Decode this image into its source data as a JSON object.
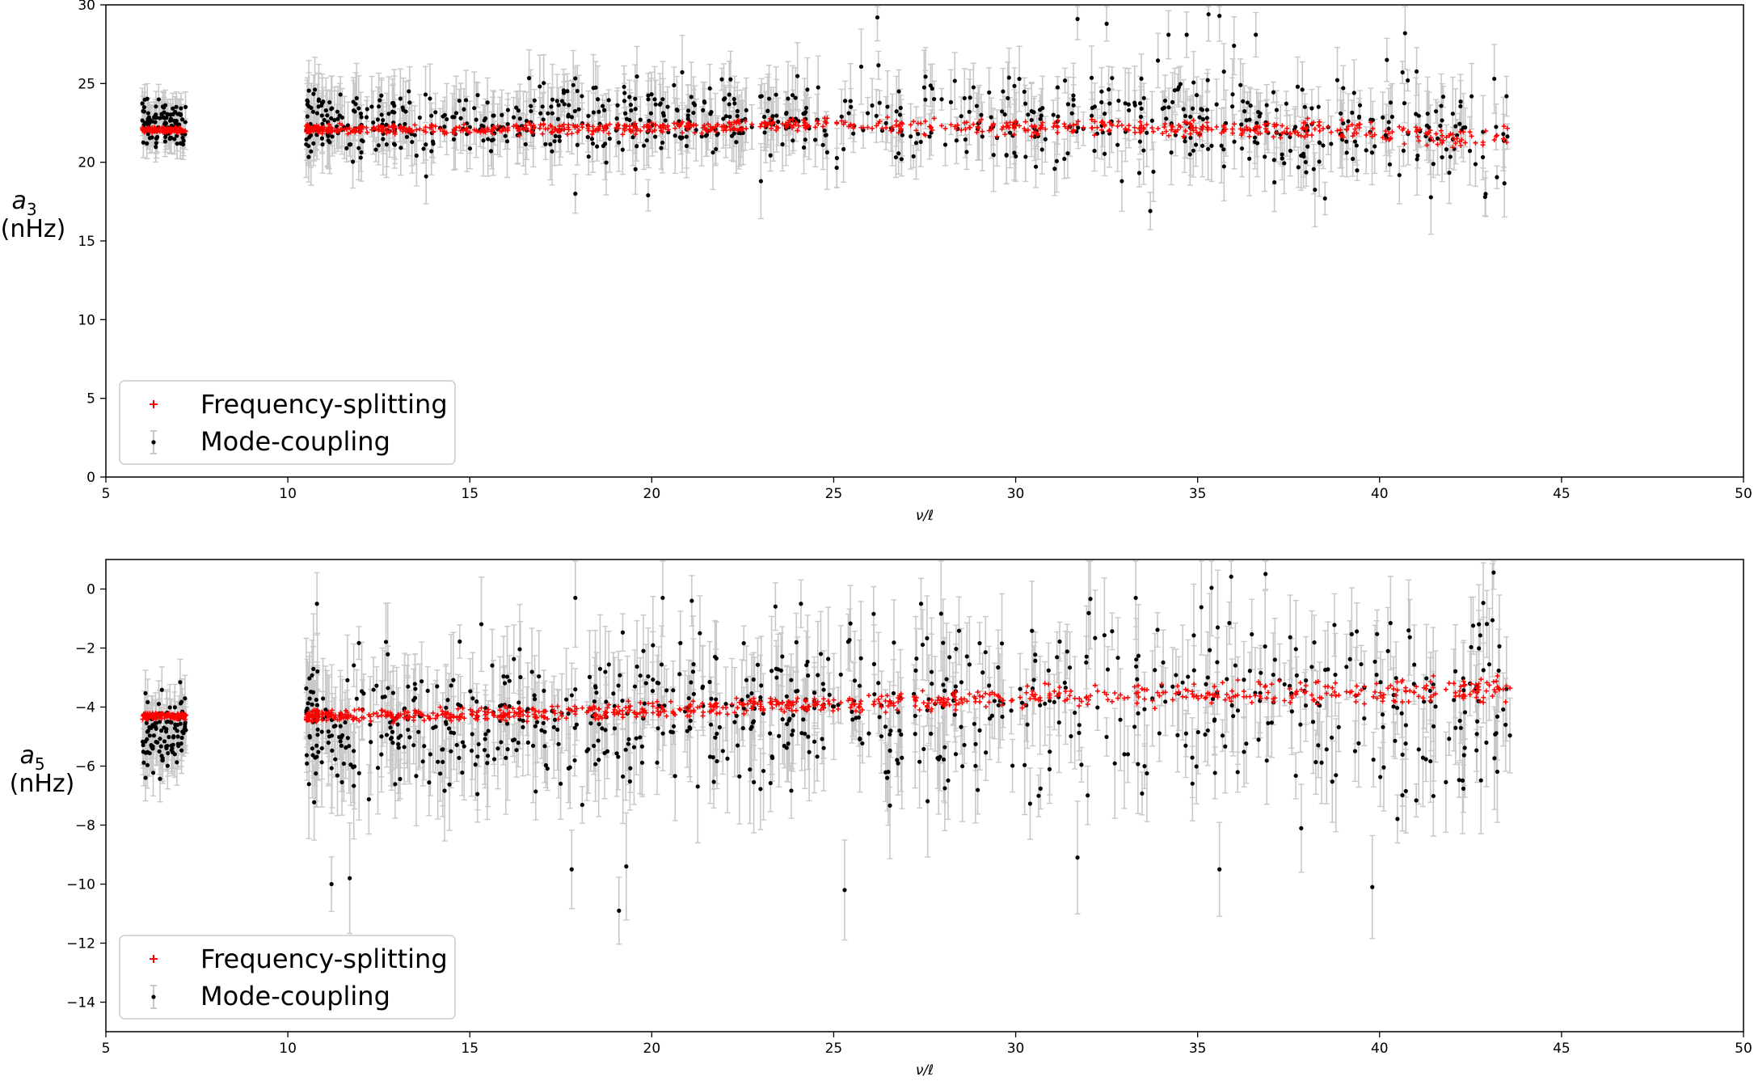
{
  "chart_data": [
    {
      "type": "scatter",
      "xlabel": "ν/ℓ",
      "ylabel_symbol": "a",
      "ylabel_subscript": "3",
      "ylabel_unit": "(nHz)",
      "xlim": [
        5,
        50
      ],
      "ylim": [
        0,
        30
      ],
      "xticks": [
        5,
        10,
        15,
        20,
        25,
        30,
        35,
        40,
        45,
        50
      ],
      "yticks": [
        0,
        5,
        10,
        15,
        20,
        25,
        30
      ],
      "grid": false,
      "legend_position": "lower-left",
      "series": [
        {
          "name": "Frequency-splitting",
          "color": "#ff0000",
          "marker": "plus",
          "trend": [
            [
              6,
              22.1
            ],
            [
              7.2,
              22.0
            ],
            [
              10.5,
              22.1
            ],
            [
              15,
              22.1
            ],
            [
              20,
              22.2
            ],
            [
              25,
              22.4
            ],
            [
              30,
              22.2
            ],
            [
              35,
              22.2
            ],
            [
              40,
              21.9
            ],
            [
              43.6,
              21.5
            ]
          ],
          "spread": 0.25
        },
        {
          "name": "Mode-coupling",
          "color": "#000000",
          "errorbar_color": "#c8c8c8",
          "marker": "dot",
          "trend": [
            [
              6,
              22.5
            ],
            [
              7.2,
              22.4
            ],
            [
              10.5,
              22.4
            ],
            [
              15,
              22.6
            ],
            [
              20,
              22.6
            ],
            [
              25,
              22.8
            ],
            [
              30,
              22.6
            ],
            [
              35,
              22.5
            ],
            [
              40,
              22.2
            ],
            [
              43.6,
              21.5
            ]
          ],
          "spread": 2.2,
          "errorbar": 1.6,
          "outliers": [
            [
              26.2,
              29.2
            ],
            [
              31.7,
              29.1
            ],
            [
              32.5,
              28.8
            ],
            [
              35.3,
              29.4
            ],
            [
              35.6,
              29.3
            ],
            [
              33.7,
              16.9
            ],
            [
              42.9,
              17.8
            ],
            [
              17.9,
              18.0
            ],
            [
              19.9,
              17.9
            ],
            [
              34.2,
              28.1
            ],
            [
              34.7,
              28.1
            ],
            [
              36.6,
              28.1
            ],
            [
              36.0,
              27.4
            ],
            [
              40.7,
              28.2
            ],
            [
              40.2,
              26.5
            ],
            [
              13.8,
              19.1
            ],
            [
              23.0,
              18.8
            ],
            [
              38.5,
              17.7
            ]
          ]
        }
      ]
    },
    {
      "type": "scatter",
      "xlabel": "ν/ℓ",
      "ylabel_symbol": "a",
      "ylabel_subscript": "5",
      "ylabel_unit": "(nHz)",
      "xlim": [
        5,
        50
      ],
      "ylim": [
        -15,
        1
      ],
      "xticks": [
        5,
        10,
        15,
        20,
        25,
        30,
        35,
        40,
        45,
        50
      ],
      "yticks": [
        -14,
        -12,
        -10,
        -8,
        -6,
        -4,
        -2,
        0
      ],
      "grid": false,
      "legend_position": "lower-left",
      "series": [
        {
          "name": "Frequency-splitting",
          "color": "#ff0000",
          "marker": "plus",
          "trend": [
            [
              6,
              -4.3
            ],
            [
              7.2,
              -4.3
            ],
            [
              10.5,
              -4.3
            ],
            [
              15,
              -4.25
            ],
            [
              20,
              -4.1
            ],
            [
              25,
              -3.9
            ],
            [
              30,
              -3.7
            ],
            [
              35,
              -3.5
            ],
            [
              40,
              -3.5
            ],
            [
              43.6,
              -3.4
            ]
          ],
          "spread": 0.18
        },
        {
          "name": "Mode-coupling",
          "color": "#000000",
          "errorbar_color": "#c8c8c8",
          "marker": "dot",
          "trend": [
            [
              6,
              -4.8
            ],
            [
              7.2,
              -4.8
            ],
            [
              10.5,
              -4.6
            ],
            [
              15,
              -4.5
            ],
            [
              20,
              -4.4
            ],
            [
              25,
              -4.1
            ],
            [
              30,
              -3.9
            ],
            [
              35,
              -3.8
            ],
            [
              40,
              -3.8
            ],
            [
              43.6,
              -4.0
            ]
          ],
          "spread": 2.3,
          "errorbar": 1.3,
          "outliers": [
            [
              19.1,
              -10.9
            ],
            [
              25.3,
              -10.2
            ],
            [
              39.8,
              -10.1
            ],
            [
              11.2,
              -10.0
            ],
            [
              11.7,
              -9.8
            ],
            [
              31.7,
              -9.1
            ],
            [
              35.6,
              -9.5
            ],
            [
              17.8,
              -9.5
            ],
            [
              19.3,
              -9.4
            ],
            [
              10.8,
              -0.5
            ],
            [
              17.9,
              -0.3
            ],
            [
              20.3,
              -0.3
            ],
            [
              21.1,
              -0.4
            ],
            [
              24.1,
              -0.5
            ],
            [
              27.4,
              -0.5
            ],
            [
              33.3,
              -0.3
            ]
          ]
        }
      ]
    }
  ],
  "panels": [
    {
      "ylabel": {
        "symbol": "a",
        "subscript": "3",
        "unit": "(nHz)"
      },
      "xlabel": "ν/ℓ",
      "legend": [
        "Frequency-splitting",
        "Mode-coupling"
      ]
    },
    {
      "ylabel": {
        "symbol": "a",
        "subscript": "5",
        "unit": "(nHz)"
      },
      "xlabel": "ν/ℓ",
      "legend": [
        "Frequency-splitting",
        "Mode-coupling"
      ]
    }
  ]
}
